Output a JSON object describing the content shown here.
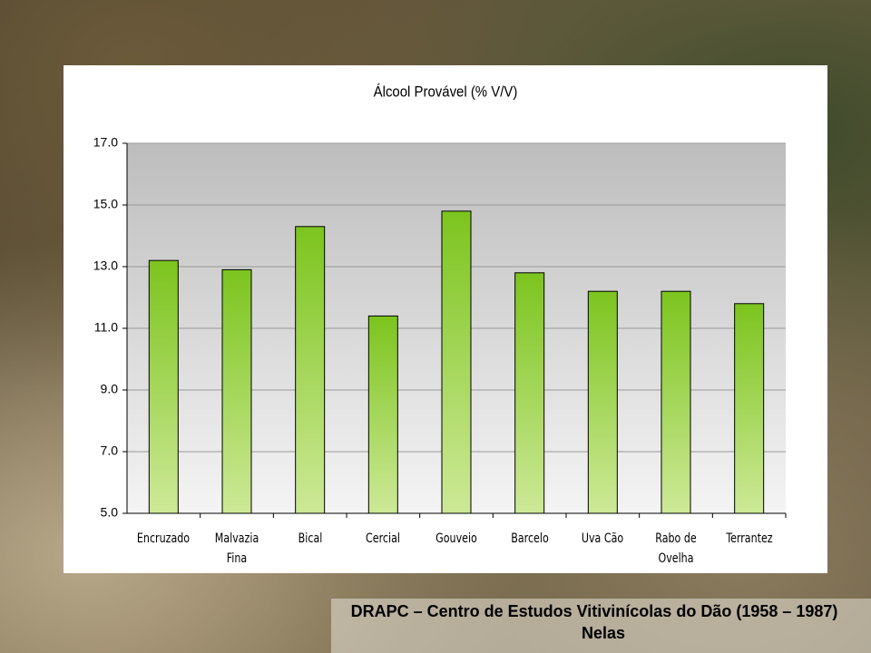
{
  "chart_data": {
    "type": "bar",
    "title": "Álcool Provável (% V/V)",
    "categories": [
      "Encruzado",
      "Malvazia Fina",
      "Bical",
      "Cercial",
      "Gouveio",
      "Barcelo",
      "Uva Cão",
      "Rabo de Ovelha",
      "Terrantez"
    ],
    "values": [
      13.2,
      12.9,
      14.3,
      11.4,
      14.8,
      12.8,
      12.2,
      12.2,
      11.8
    ],
    "color": "#8ccf2a",
    "ylim": [
      5,
      17
    ],
    "yticks": [
      {
        "value": 5,
        "label": "5.0"
      },
      {
        "value": 7,
        "label": "7.0"
      },
      {
        "value": 9,
        "label": "9.0"
      },
      {
        "value": 11,
        "label": "11.0"
      },
      {
        "value": 13,
        "label": "13.0"
      },
      {
        "value": 15,
        "label": "15.0"
      },
      {
        "value": 17,
        "label": "17.0"
      }
    ],
    "grid": true
  },
  "footer": {
    "line1": "DRAPC – Centro de Estudos Vitivinícolas do Dão (1958 – 1987)",
    "line2": "Nelas"
  }
}
